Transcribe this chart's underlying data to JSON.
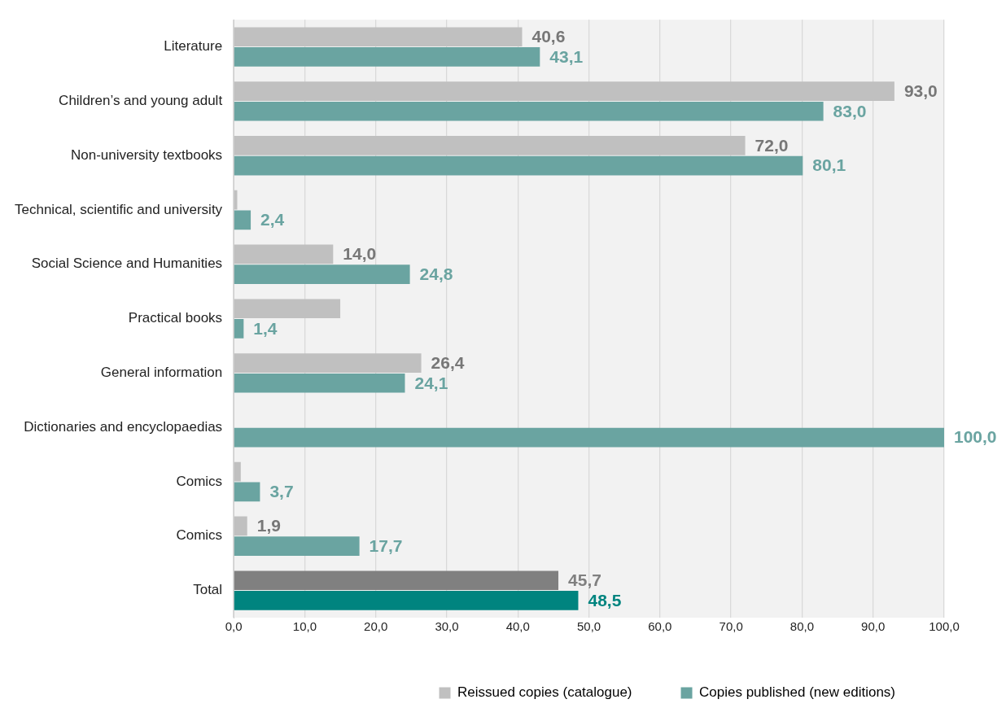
{
  "chart_data": {
    "type": "bar",
    "orientation": "horizontal",
    "categories": [
      "Literature",
      "Children’s and young adult",
      "Non-university textbooks",
      "Technical, scientific and university",
      "Social Science and Humanities",
      "Practical books",
      "General information",
      "Dictionaries and encyclopaedias",
      "Comics",
      "Comics",
      "Total"
    ],
    "series": [
      {
        "name": "Reissued copies (catalogue)",
        "color": "#c0c0c0",
        "colors": [
          "#c0c0c0",
          "#c0c0c0",
          "#c0c0c0",
          "#c0c0c0",
          "#c0c0c0",
          "#c0c0c0",
          "#c0c0c0",
          "#c0c0c0",
          "#c0c0c0",
          "#c0c0c0",
          "#808080"
        ],
        "values": [
          40.6,
          93.0,
          72.0,
          0.5,
          14.0,
          15.0,
          26.4,
          null,
          1.0,
          1.9,
          45.7
        ],
        "value_labels": [
          "40,6",
          "93,0",
          "72,0",
          null,
          "14,0",
          null,
          "26,4",
          null,
          null,
          "1,9",
          "45,7"
        ]
      },
      {
        "name": "Copies published (new editions)",
        "color": "#6aa4a1",
        "colors": [
          "#6aa4a1",
          "#6aa4a1",
          "#6aa4a1",
          "#6aa4a1",
          "#6aa4a1",
          "#6aa4a1",
          "#6aa4a1",
          "#6aa4a1",
          "#6aa4a1",
          "#6aa4a1",
          "#00847f"
        ],
        "values": [
          43.1,
          83.0,
          80.1,
          2.4,
          24.8,
          1.4,
          24.1,
          100.0,
          3.7,
          17.7,
          48.5
        ],
        "value_labels": [
          "43,1",
          "83,0",
          "80,1",
          "2,4",
          "24,8",
          "1,4",
          "24,1",
          "100,0",
          "3,7",
          "17,7",
          "48,5"
        ]
      }
    ],
    "xlim": [
      0,
      100
    ],
    "xticks": [
      {
        "value": 0,
        "label": "0,0"
      },
      {
        "value": 10,
        "label": "10,0"
      },
      {
        "value": 20,
        "label": "20,0"
      },
      {
        "value": 30,
        "label": "30,0"
      },
      {
        "value": 40,
        "label": "40,0"
      },
      {
        "value": 50,
        "label": "50,0"
      },
      {
        "value": 60,
        "label": "60,0"
      },
      {
        "value": 70,
        "label": "70,0"
      },
      {
        "value": 80,
        "label": "80,0"
      },
      {
        "value": 90,
        "label": "90,0"
      },
      {
        "value": 100,
        "label": "100,0"
      }
    ],
    "grid": "x",
    "legend": "bottom right"
  }
}
